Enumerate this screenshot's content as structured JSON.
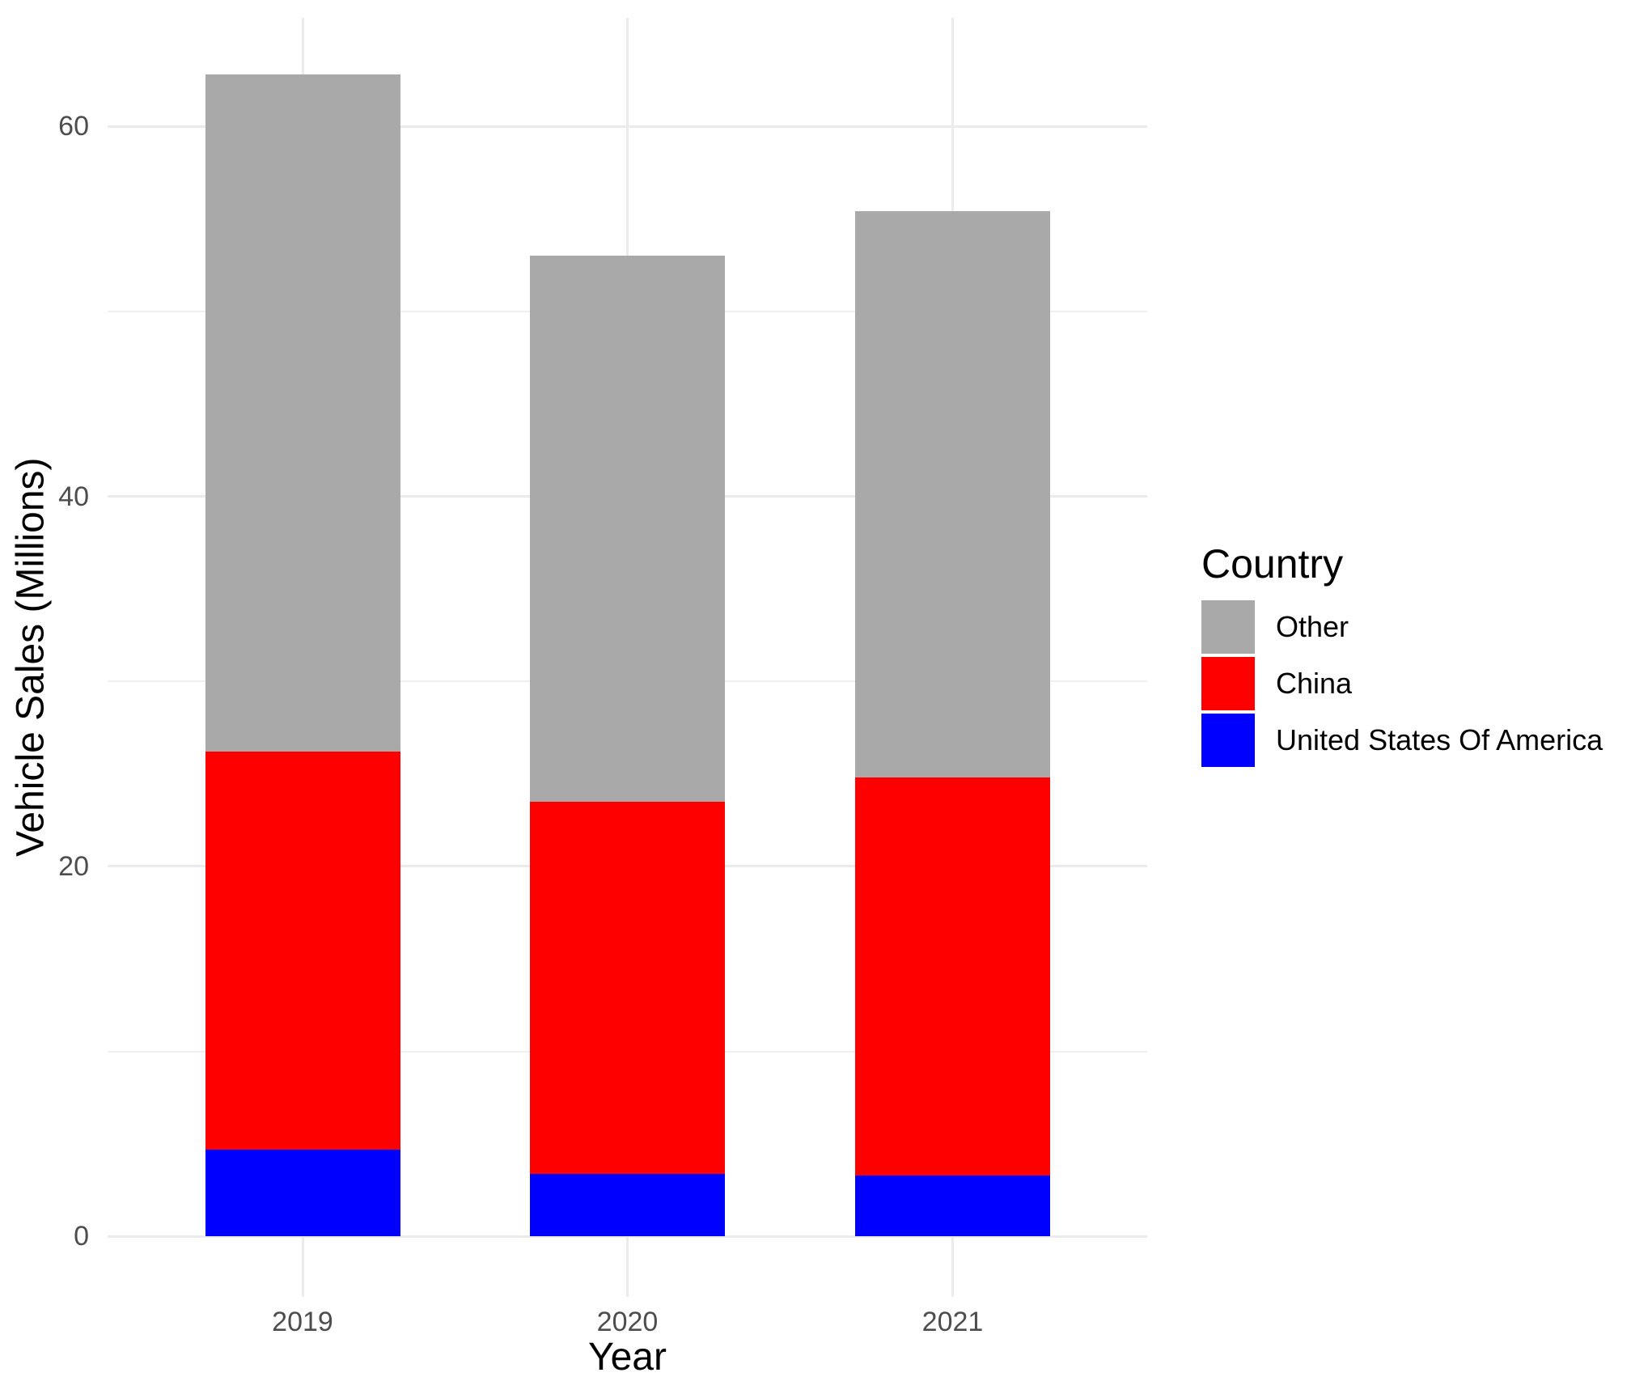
{
  "axes": {
    "x_title": "Year",
    "y_title": "Vehicle Sales (Millions)",
    "x_tick_labels": [
      "2019",
      "2020",
      "2021"
    ],
    "y_tick_labels": [
      "0",
      "20",
      "40",
      "60"
    ],
    "y_tick_values": [
      0,
      20,
      40,
      60
    ],
    "y_minor_values": [
      10,
      30,
      50
    ]
  },
  "legend": {
    "title": "Country",
    "items": [
      {
        "label": "Other",
        "color": "#A9A9A9"
      },
      {
        "label": "China",
        "color": "#FF0000"
      },
      {
        "label": "United States Of America",
        "color": "#0000FF"
      }
    ]
  },
  "chart_data": {
    "type": "bar",
    "stacked": true,
    "title": "",
    "xlabel": "Year",
    "ylabel": "Vehicle Sales (Millions)",
    "categories": [
      "2019",
      "2020",
      "2021"
    ],
    "series": [
      {
        "name": "United States Of America",
        "color": "#0000FF",
        "values": [
          4.7,
          3.4,
          3.3
        ]
      },
      {
        "name": "China",
        "color": "#FF0000",
        "values": [
          21.5,
          20.1,
          21.5
        ]
      },
      {
        "name": "Other",
        "color": "#A9A9A9",
        "values": [
          36.6,
          29.5,
          30.6
        ]
      }
    ],
    "stack_order_bottom_to_top": [
      "United States Of America",
      "China",
      "Other"
    ],
    "ylim": [
      0,
      66
    ],
    "grid": true,
    "legend_position": "right",
    "colors": {
      "grid_major": "#EBEBEB",
      "grid_minor": "#EFEFEF",
      "tick_text": "#4D4D4D",
      "axis_title_text": "#000000",
      "background": "#FFFFFF"
    }
  }
}
